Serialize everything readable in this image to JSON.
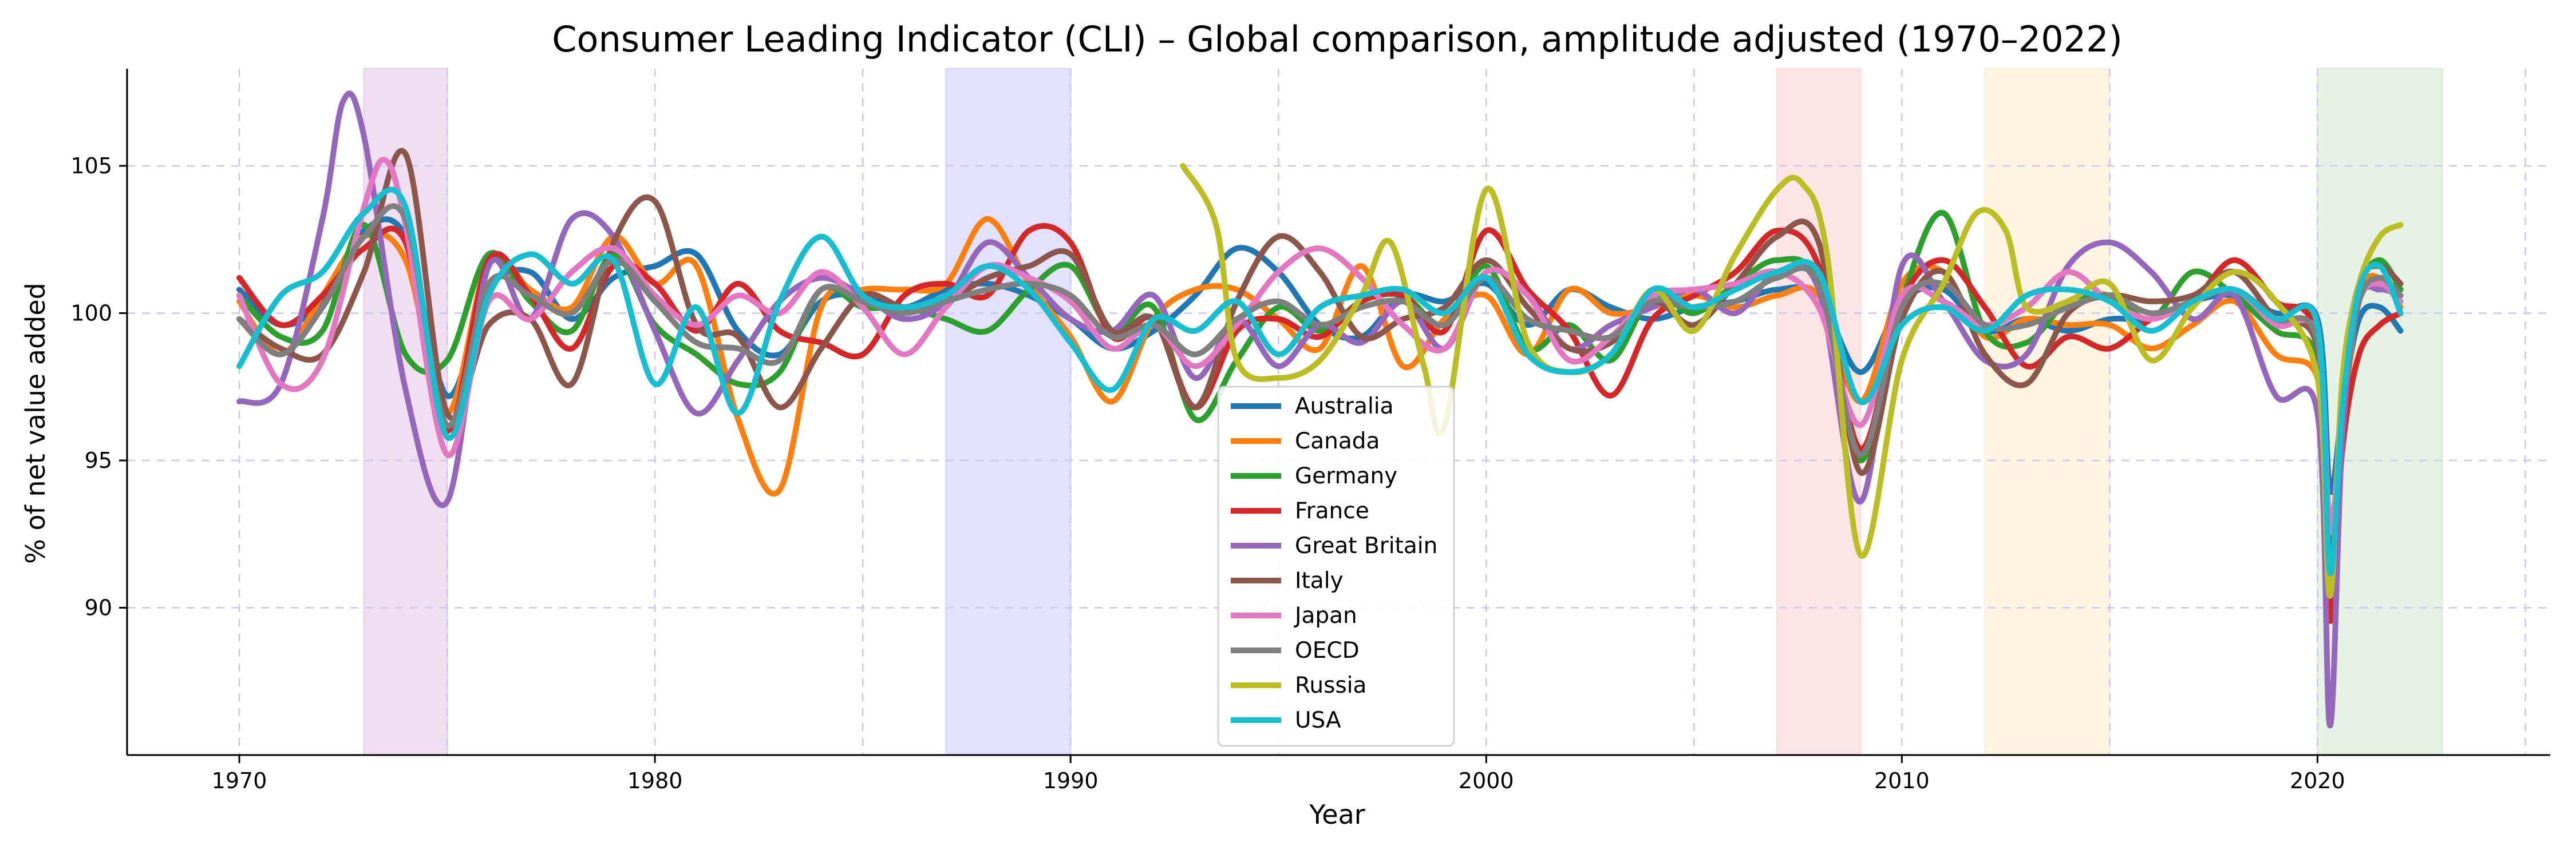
{
  "chart_data": {
    "type": "line",
    "title": "Consumer Leading Indicator (CLI) – Global comparison, amplitude adjusted (1970–2022)",
    "xlabel": "Year",
    "ylabel": "% of net value added",
    "xlim": [
      1967.3,
      2025.6
    ],
    "ylim": [
      85,
      108.3
    ],
    "xticks": [
      1970,
      1980,
      1990,
      2000,
      2010,
      2020
    ],
    "yticks": [
      90,
      95,
      100,
      105
    ],
    "grid": true,
    "legend_position": "lower-center",
    "shaded_periods": [
      {
        "start": 1973,
        "end": 1975,
        "color": "#e9d4ec"
      },
      {
        "start": 1987,
        "end": 1990,
        "color": "#d8d8fb"
      },
      {
        "start": 2007,
        "end": 2009,
        "color": "#fddcdc"
      },
      {
        "start": 2012,
        "end": 2015,
        "color": "#fdf0d8"
      },
      {
        "start": 2020,
        "end": 2023,
        "color": "#dceedb"
      }
    ],
    "series": [
      {
        "name": "Australia",
        "color": "#1f77b4",
        "x": [
          1970,
          1971,
          1972,
          1973,
          1974,
          1975,
          1976,
          1977,
          1978,
          1979,
          1980,
          1981,
          1982,
          1983,
          1984,
          1985,
          1986,
          1987,
          1988,
          1989,
          1990,
          1991,
          1992,
          1993,
          1994,
          1995,
          1996,
          1997,
          1998,
          1999,
          2000,
          2001,
          2002,
          2003,
          2004,
          2005,
          2006,
          2007,
          2008,
          2009,
          2010,
          2011,
          2012,
          2013,
          2014,
          2015,
          2016,
          2017,
          2018,
          2019,
          2020,
          2020.3,
          2020.6,
          2021,
          2021.5,
          2022
        ],
        "y": [
          100.8,
          99.6,
          100.4,
          102.8,
          102.6,
          97.2,
          100.8,
          101.4,
          99.8,
          101.2,
          101.6,
          102.0,
          99.4,
          98.6,
          100.4,
          100.6,
          100.2,
          100.8,
          101.0,
          100.6,
          99.8,
          98.8,
          99.4,
          100.6,
          102.2,
          101.4,
          99.6,
          99.2,
          100.6,
          100.4,
          101.0,
          99.6,
          100.8,
          100.2,
          99.8,
          100.2,
          100.4,
          100.8,
          100.6,
          98.0,
          100.4,
          100.8,
          99.4,
          99.8,
          99.4,
          99.8,
          99.8,
          100.4,
          100.6,
          100.0,
          99.8,
          94.0,
          96.8,
          99.8,
          100.2,
          99.4
        ]
      },
      {
        "name": "Canada",
        "color": "#ff7f0e",
        "x": [
          1970,
          1971,
          1972,
          1973,
          1974,
          1975,
          1976,
          1977,
          1978,
          1979,
          1980,
          1981,
          1982,
          1983,
          1984,
          1985,
          1986,
          1987,
          1988,
          1989,
          1990,
          1991,
          1992,
          1993,
          1994,
          1995,
          1996,
          1997,
          1998,
          1999,
          2000,
          2001,
          2002,
          2003,
          2004,
          2005,
          2006,
          2007,
          2008,
          2009,
          2010,
          2011,
          2012,
          2013,
          2014,
          2015,
          2016,
          2017,
          2018,
          2019,
          2020,
          2020.3,
          2020.6,
          2021,
          2021.5,
          2022
        ],
        "y": [
          100.4,
          98.6,
          100.6,
          102.6,
          101.8,
          96.6,
          101.8,
          100.8,
          100.2,
          102.6,
          101.0,
          101.6,
          96.4,
          94.0,
          100.2,
          100.8,
          100.8,
          101.0,
          103.2,
          101.0,
          99.2,
          97.0,
          99.8,
          100.8,
          100.8,
          99.8,
          98.8,
          101.6,
          98.2,
          99.8,
          100.6,
          98.6,
          100.8,
          100.0,
          100.2,
          100.6,
          100.2,
          100.6,
          100.6,
          97.0,
          101.0,
          101.4,
          99.2,
          99.8,
          99.6,
          99.6,
          98.8,
          99.6,
          100.4,
          98.6,
          97.8,
          93.0,
          96.0,
          100.6,
          101.2,
          100.2
        ]
      },
      {
        "name": "Germany",
        "color": "#2ca02c",
        "x": [
          1970,
          1971,
          1972,
          1973,
          1974,
          1975,
          1976,
          1977,
          1978,
          1979,
          1980,
          1981,
          1982,
          1983,
          1984,
          1985,
          1986,
          1987,
          1988,
          1989,
          1990,
          1991,
          1992,
          1993,
          1994,
          1995,
          1996,
          1997,
          1998,
          1999,
          2000,
          2001,
          2002,
          2003,
          2004,
          2005,
          2006,
          2007,
          2008,
          2009,
          2010,
          2011,
          2012,
          2013,
          2014,
          2015,
          2016,
          2017,
          2018,
          2019,
          2020,
          2020.3,
          2020.6,
          2021,
          2021.5,
          2022
        ],
        "y": [
          100.6,
          99.2,
          99.4,
          103.0,
          98.6,
          98.4,
          102.0,
          100.4,
          99.4,
          102.0,
          99.6,
          98.6,
          97.6,
          98.0,
          100.8,
          100.2,
          100.2,
          99.8,
          99.4,
          100.8,
          101.6,
          99.4,
          100.2,
          96.4,
          98.4,
          100.2,
          99.4,
          100.4,
          100.6,
          99.6,
          101.6,
          98.8,
          99.6,
          98.4,
          100.6,
          100.0,
          101.0,
          101.8,
          101.0,
          95.0,
          100.4,
          103.4,
          99.4,
          99.0,
          100.4,
          100.6,
          99.8,
          101.4,
          100.6,
          99.4,
          98.4,
          91.8,
          97.2,
          100.8,
          101.8,
          100.8
        ]
      },
      {
        "name": "France",
        "color": "#d62728",
        "x": [
          1970,
          1971,
          1972,
          1973,
          1974,
          1975,
          1976,
          1977,
          1978,
          1979,
          1980,
          1981,
          1982,
          1983,
          1984,
          1985,
          1986,
          1987,
          1988,
          1989,
          1990,
          1991,
          1992,
          1993,
          1994,
          1995,
          1996,
          1997,
          1998,
          1999,
          2000,
          2001,
          2002,
          2003,
          2004,
          2005,
          2006,
          2007,
          2008,
          2009,
          2010,
          2011,
          2012,
          2013,
          2014,
          2015,
          2016,
          2017,
          2018,
          2019,
          2020,
          2020.3,
          2020.6,
          2021,
          2021.5,
          2022
        ],
        "y": [
          101.2,
          99.6,
          100.6,
          102.2,
          102.4,
          96.0,
          101.8,
          100.6,
          98.8,
          101.6,
          101.0,
          99.4,
          101.0,
          99.4,
          99.0,
          98.6,
          100.6,
          101.0,
          100.6,
          102.8,
          102.4,
          99.2,
          99.8,
          96.8,
          99.4,
          99.8,
          99.2,
          100.4,
          100.6,
          99.4,
          102.8,
          100.8,
          99.4,
          97.2,
          99.8,
          100.6,
          101.4,
          102.8,
          101.6,
          95.4,
          100.4,
          101.8,
          100.2,
          98.2,
          99.2,
          98.8,
          99.8,
          100.4,
          101.8,
          100.4,
          99.0,
          89.6,
          95.4,
          98.6,
          99.6,
          100.0
        ]
      },
      {
        "name": "Great Britain",
        "color": "#9467bd",
        "x": [
          1970,
          1971,
          1972,
          1972.5,
          1973,
          1974,
          1975,
          1976,
          1977,
          1978,
          1979,
          1980,
          1981,
          1982,
          1983,
          1984,
          1985,
          1986,
          1987,
          1988,
          1989,
          1990,
          1991,
          1992,
          1993,
          1994,
          1995,
          1996,
          1997,
          1998,
          1999,
          2000,
          2001,
          2002,
          2003,
          2004,
          2005,
          2006,
          2007,
          2008,
          2009,
          2010,
          2011,
          2012,
          2013,
          2014,
          2015,
          2016,
          2017,
          2018,
          2019,
          2020,
          2020.3,
          2020.6,
          2021,
          2021.5,
          2022
        ],
        "y": [
          97.0,
          97.6,
          103.2,
          107.2,
          106.0,
          97.4,
          93.6,
          101.6,
          99.8,
          103.2,
          102.6,
          99.4,
          96.6,
          98.4,
          100.4,
          101.2,
          100.6,
          99.8,
          100.4,
          102.4,
          101.2,
          99.8,
          99.4,
          100.6,
          97.8,
          99.8,
          98.2,
          99.6,
          99.0,
          100.4,
          98.8,
          101.4,
          100.6,
          98.8,
          99.6,
          100.2,
          100.8,
          100.0,
          101.4,
          100.8,
          93.6,
          101.6,
          100.4,
          98.4,
          98.6,
          101.6,
          102.4,
          101.4,
          99.8,
          100.6,
          97.2,
          96.6,
          86.0,
          95.8,
          100.4,
          100.8,
          100.6
        ]
      },
      {
        "name": "Italy",
        "color": "#8c564b",
        "x": [
          1970,
          1971,
          1972,
          1973,
          1974,
          1975,
          1976,
          1977,
          1978,
          1979,
          1980,
          1981,
          1982,
          1983,
          1984,
          1985,
          1986,
          1987,
          1988,
          1989,
          1990,
          1991,
          1992,
          1993,
          1994,
          1995,
          1996,
          1997,
          1998,
          1999,
          2000,
          2001,
          2002,
          2003,
          2004,
          2005,
          2006,
          2007,
          2008,
          2009,
          2010,
          2011,
          2012,
          2013,
          2014,
          2015,
          2016,
          2017,
          2018,
          2019,
          2020,
          2020.3,
          2020.6,
          2021,
          2021.5,
          2022
        ],
        "y": [
          99.8,
          98.8,
          98.6,
          101.4,
          105.4,
          96.6,
          99.6,
          99.8,
          97.6,
          102.4,
          103.8,
          99.6,
          99.2,
          96.8,
          98.8,
          100.6,
          100.2,
          100.4,
          101.2,
          101.6,
          102.0,
          99.4,
          99.8,
          96.8,
          100.4,
          102.6,
          101.4,
          99.2,
          99.8,
          100.2,
          101.8,
          100.2,
          98.8,
          99.0,
          100.4,
          99.6,
          101.0,
          102.6,
          102.4,
          94.6,
          99.8,
          101.4,
          98.6,
          97.6,
          100.0,
          100.6,
          100.4,
          100.6,
          101.4,
          99.8,
          98.8,
          91.4,
          97.6,
          101.0,
          101.6,
          101.0
        ]
      },
      {
        "name": "Japan",
        "color": "#e377c2",
        "x": [
          1970,
          1971,
          1972,
          1973,
          1973.5,
          1974,
          1975,
          1976,
          1977,
          1978,
          1979,
          1980,
          1981,
          1982,
          1983,
          1984,
          1985,
          1986,
          1987,
          1988,
          1989,
          1990,
          1991,
          1992,
          1993,
          1994,
          1995,
          1996,
          1997,
          1998,
          1999,
          2000,
          2001,
          2002,
          2003,
          2004,
          2005,
          2006,
          2007,
          2008,
          2009,
          2010,
          2011,
          2012,
          2013,
          2014,
          2015,
          2016,
          2017,
          2018,
          2019,
          2020,
          2020.3,
          2020.6,
          2021,
          2021.5,
          2022
        ],
        "y": [
          100.6,
          97.6,
          98.4,
          103.6,
          105.2,
          103.0,
          95.2,
          100.4,
          99.8,
          101.4,
          102.2,
          100.6,
          99.6,
          100.6,
          100.0,
          101.4,
          100.2,
          98.6,
          100.2,
          101.6,
          101.2,
          100.4,
          98.8,
          99.6,
          98.2,
          99.6,
          101.4,
          102.2,
          101.2,
          99.6,
          98.8,
          101.4,
          100.6,
          98.4,
          99.2,
          100.6,
          100.8,
          101.0,
          101.4,
          100.2,
          96.2,
          100.6,
          100.4,
          99.6,
          100.2,
          101.4,
          100.4,
          99.8,
          100.4,
          100.8,
          99.6,
          99.2,
          92.6,
          96.8,
          100.4,
          101.0,
          100.4
        ]
      },
      {
        "name": "OECD",
        "color": "#7f7f7f",
        "x": [
          1970,
          1971,
          1972,
          1973,
          1974,
          1975,
          1976,
          1977,
          1978,
          1979,
          1980,
          1981,
          1982,
          1983,
          1984,
          1985,
          1986,
          1987,
          1988,
          1989,
          1990,
          1991,
          1992,
          1993,
          1994,
          1995,
          1996,
          1997,
          1998,
          1999,
          2000,
          2001,
          2002,
          2003,
          2004,
          2005,
          2006,
          2007,
          2008,
          2009,
          2010,
          2011,
          2012,
          2013,
          2014,
          2015,
          2016,
          2017,
          2018,
          2019,
          2020,
          2020.3,
          2020.6,
          2021,
          2021.5,
          2022
        ],
        "y": [
          99.8,
          98.6,
          100.2,
          102.6,
          103.2,
          96.2,
          101.0,
          100.6,
          100.0,
          101.8,
          100.4,
          99.0,
          98.8,
          98.4,
          100.8,
          100.4,
          100.0,
          100.4,
          100.8,
          101.0,
          100.6,
          99.2,
          99.6,
          98.6,
          99.8,
          100.4,
          99.6,
          100.2,
          100.4,
          99.6,
          101.2,
          99.8,
          99.4,
          99.2,
          100.4,
          100.2,
          100.4,
          101.2,
          101.0,
          95.2,
          100.2,
          101.0,
          99.6,
          99.6,
          100.2,
          100.6,
          100.0,
          100.4,
          100.8,
          99.8,
          99.0,
          91.0,
          96.6,
          100.4,
          101.2,
          100.6
        ]
      },
      {
        "name": "Russia",
        "color": "#bcbd22",
        "x": [
          1992.7,
          1993.5,
          1994,
          1995,
          1996,
          1997,
          1997.7,
          1998.5,
          1999,
          2000,
          2001,
          2002,
          2003,
          2004,
          2005,
          2006,
          2007,
          2007.6,
          2008.2,
          2009,
          2010,
          2011,
          2011.8,
          2012.5,
          2013,
          2014,
          2015,
          2016,
          2017,
          2018,
          2019,
          2020,
          2020.3,
          2020.6,
          2021,
          2021.5,
          2022
        ],
        "y": [
          105.0,
          103.0,
          98.4,
          97.8,
          98.4,
          100.6,
          102.4,
          98.2,
          96.2,
          104.2,
          99.0,
          98.0,
          98.6,
          100.8,
          99.4,
          102.0,
          104.2,
          104.4,
          102.0,
          91.8,
          98.4,
          101.0,
          103.4,
          102.8,
          100.2,
          100.4,
          101.0,
          98.4,
          100.2,
          101.4,
          100.4,
          97.8,
          90.4,
          97.8,
          101.0,
          102.6,
          103.0
        ]
      },
      {
        "name": "USA",
        "color": "#17becf",
        "x": [
          1970,
          1971,
          1972,
          1973,
          1974,
          1975,
          1976,
          1977,
          1978,
          1979,
          1980,
          1981,
          1982,
          1983,
          1984,
          1985,
          1986,
          1987,
          1988,
          1989,
          1990,
          1991,
          1992,
          1993,
          1994,
          1995,
          1996,
          1997,
          1998,
          1999,
          2000,
          2001,
          2002,
          2003,
          2004,
          2005,
          2006,
          2007,
          2008,
          2009,
          2010,
          2011,
          2012,
          2013,
          2014,
          2015,
          2016,
          2017,
          2018,
          2019,
          2020,
          2020.3,
          2020.6,
          2021,
          2021.5,
          2022
        ],
        "y": [
          98.2,
          100.6,
          101.4,
          103.4,
          103.6,
          95.8,
          100.6,
          102.0,
          101.0,
          101.8,
          97.6,
          100.2,
          96.6,
          100.4,
          102.6,
          100.6,
          100.2,
          100.6,
          101.6,
          100.8,
          99.0,
          97.4,
          99.8,
          99.4,
          100.4,
          98.6,
          100.2,
          100.6,
          100.8,
          100.0,
          101.2,
          98.6,
          98.0,
          98.6,
          100.8,
          100.2,
          100.8,
          101.4,
          101.4,
          97.0,
          99.6,
          100.2,
          99.4,
          100.6,
          100.8,
          100.4,
          99.4,
          100.4,
          100.8,
          99.8,
          99.6,
          91.2,
          96.8,
          100.8,
          101.6,
          100.0
        ]
      }
    ]
  }
}
